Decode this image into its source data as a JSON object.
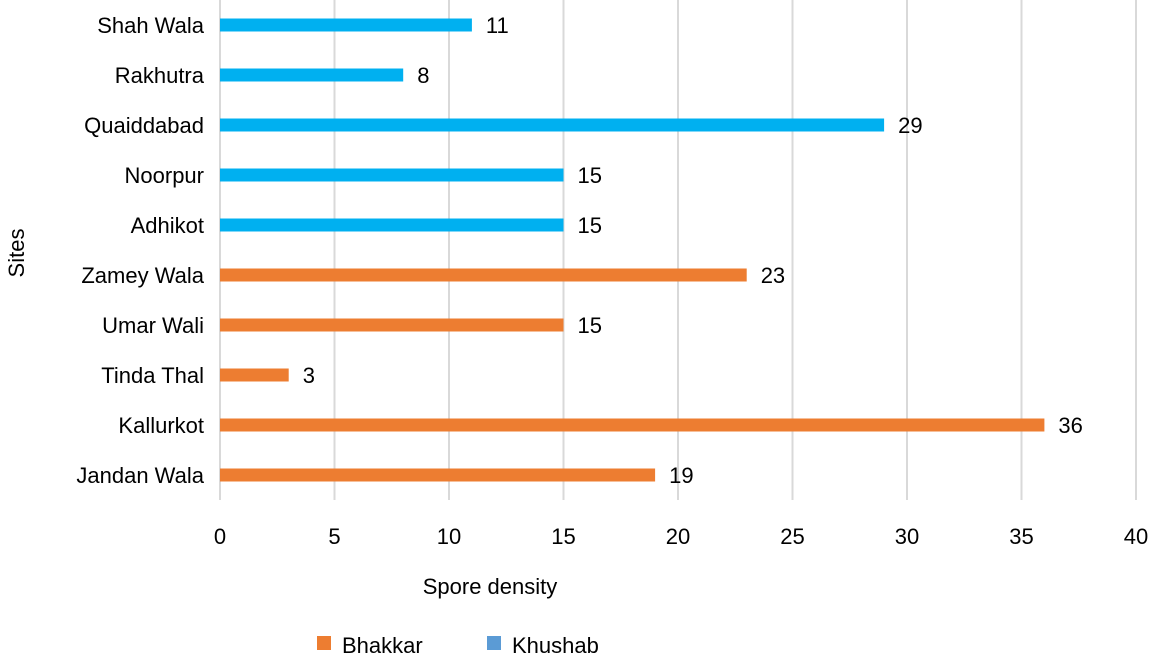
{
  "chart_data": {
    "type": "bar",
    "orientation": "horizontal",
    "title": "",
    "xlabel": "Spore density",
    "ylabel": "Sites",
    "xlim": [
      0,
      40
    ],
    "xticks": [
      0,
      5,
      10,
      15,
      20,
      25,
      30,
      35,
      40
    ],
    "grid": true,
    "legend_position": "bottom",
    "categories": [
      "Jandan Wala",
      "Kallurkot",
      "Tinda Thal",
      "Umar Wali",
      "Zamey Wala",
      "Adhikot",
      "Noorpur",
      "Quaiddabad",
      "Rakhutra",
      "Shah Wala"
    ],
    "values": [
      19,
      36,
      3,
      15,
      23,
      15,
      15,
      29,
      8,
      11
    ],
    "groups": [
      "Bhakkar",
      "Bhakkar",
      "Bhakkar",
      "Bhakkar",
      "Bhakkar",
      "Khushab",
      "Khushab",
      "Khushab",
      "Khushab",
      "Khushab"
    ],
    "series": [
      {
        "name": "Bhakkar",
        "legend_color": "#ED7D31"
      },
      {
        "name": "Khushab",
        "legend_color": "#5B9BD5"
      }
    ],
    "bar_colors": {
      "Bhakkar": "#ED7D31",
      "Khushab": "#00B0F0"
    }
  }
}
